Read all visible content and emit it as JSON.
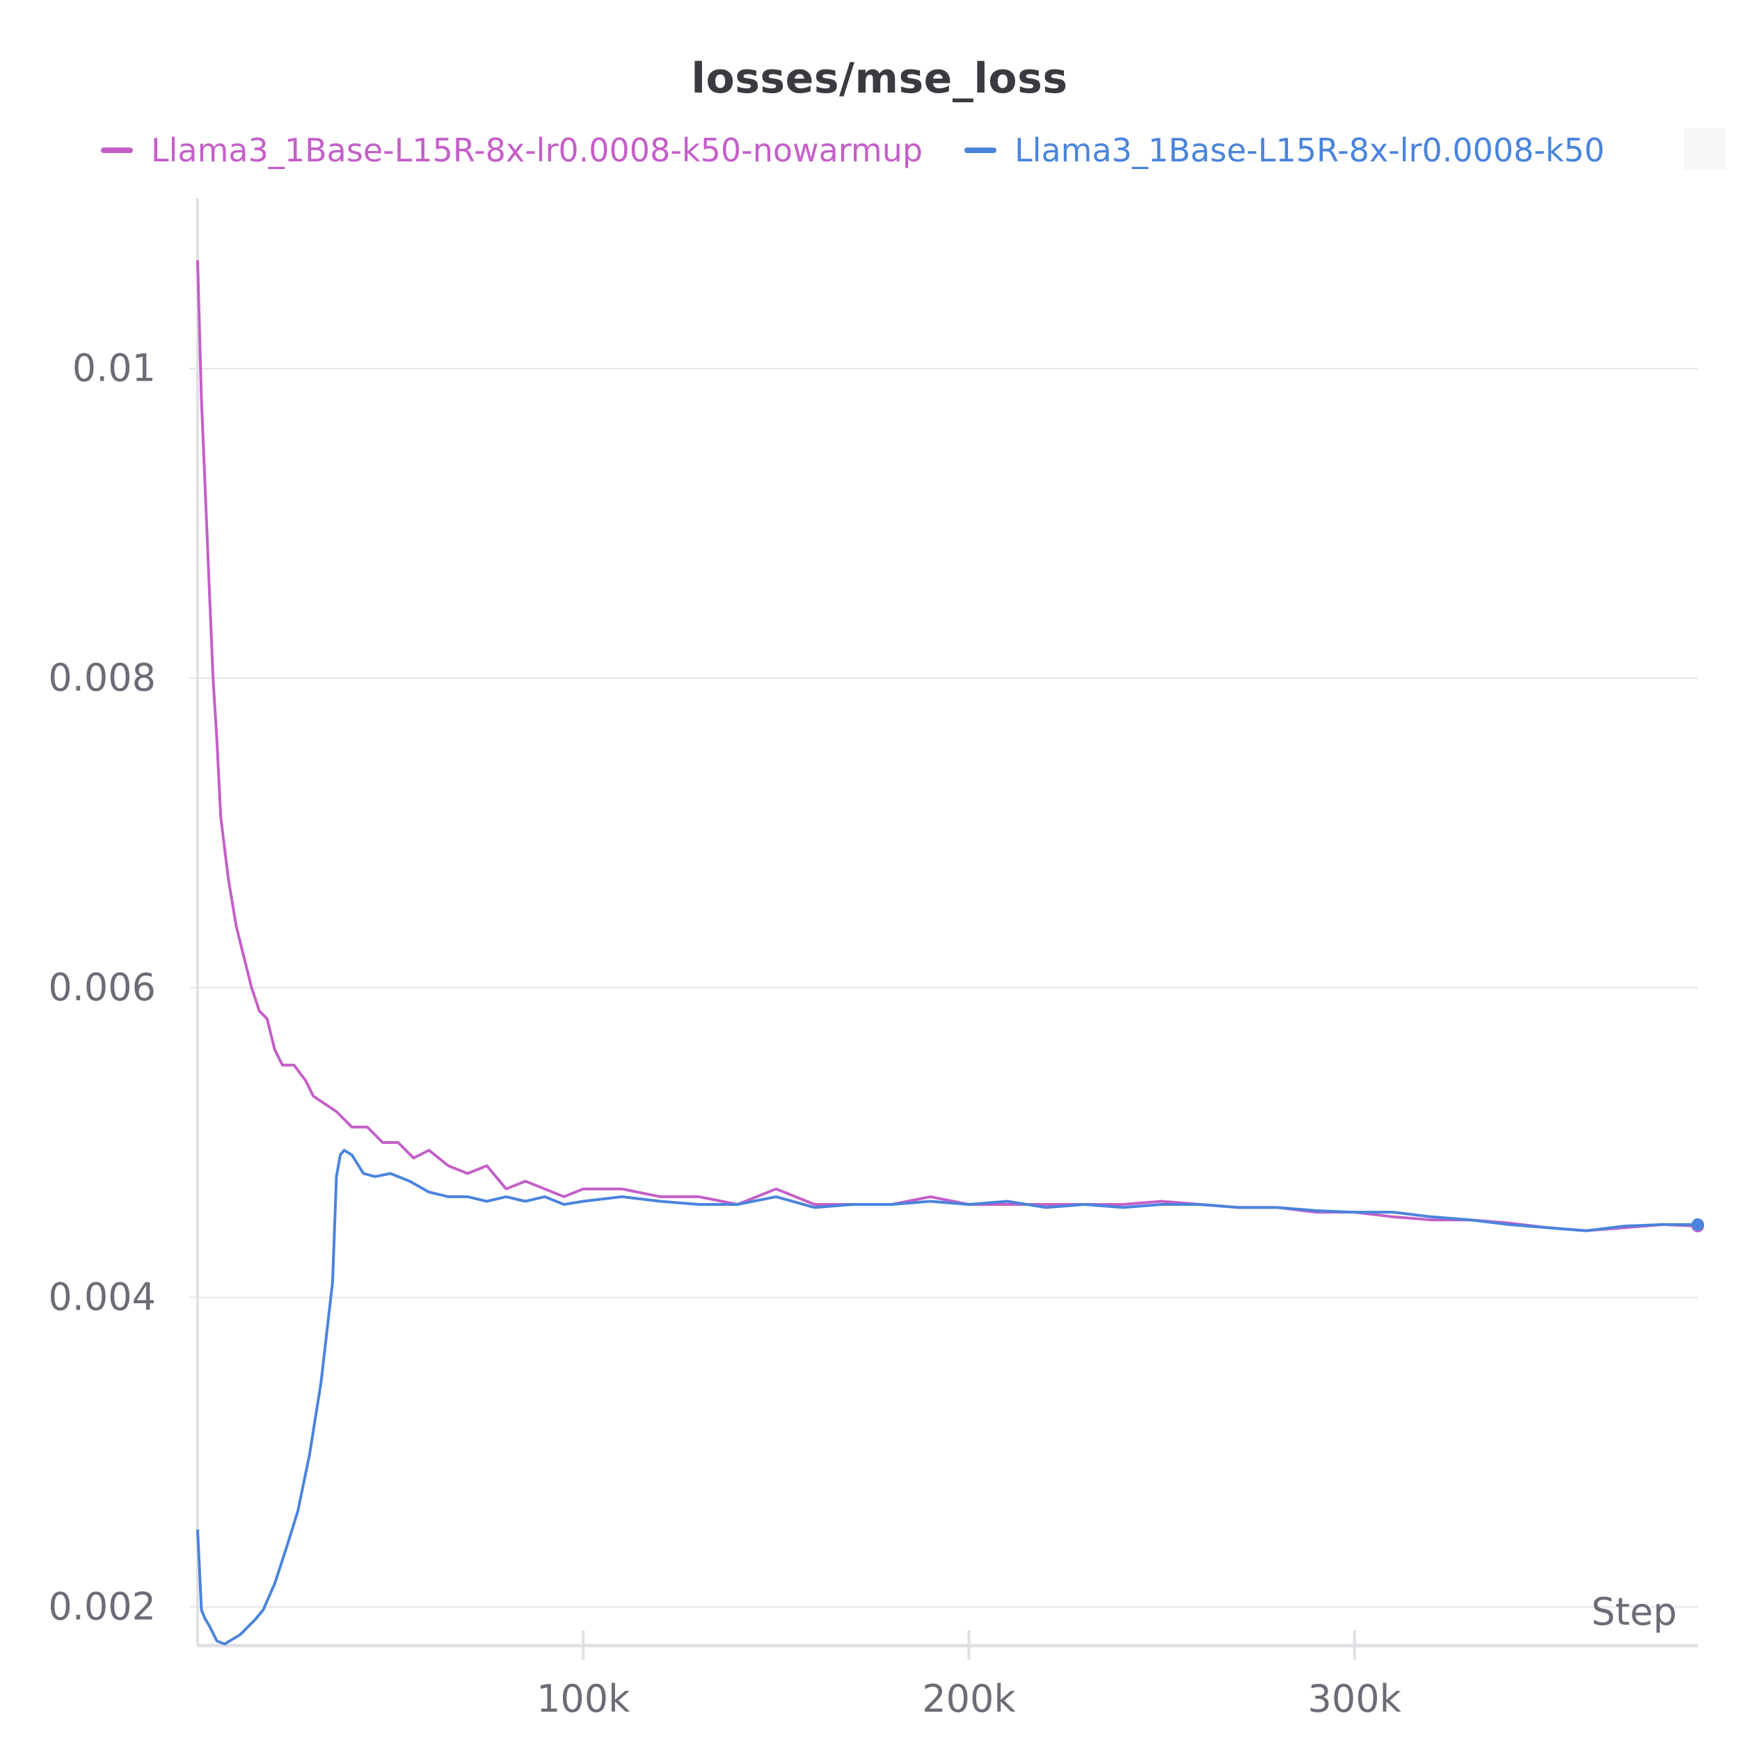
{
  "chart_data": {
    "type": "line",
    "title": "losses/mse_loss",
    "xlabel": "Step",
    "ylabel": "",
    "xlim": [
      0,
      389000
    ],
    "ylim": [
      0.00175,
      0.0111
    ],
    "x_ticks": [
      {
        "value": 100000,
        "label": "100k"
      },
      {
        "value": 200000,
        "label": "200k"
      },
      {
        "value": 300000,
        "label": "300k"
      }
    ],
    "y_ticks": [
      {
        "value": 0.002,
        "label": "0.002"
      },
      {
        "value": 0.004,
        "label": "0.004"
      },
      {
        "value": 0.006,
        "label": "0.006"
      },
      {
        "value": 0.008,
        "label": "0.008"
      },
      {
        "value": 0.01,
        "label": "0.01"
      }
    ],
    "grid": true,
    "legend_position": "top",
    "series": [
      {
        "name": "Llama3_1Base-L15R-8x-lr0.0008-k50-nowarmup",
        "color": "#c45fc8",
        "x": [
          0,
          1000,
          2000,
          3000,
          4000,
          5000,
          6000,
          8000,
          10000,
          12000,
          14000,
          16000,
          18000,
          20000,
          22000,
          25000,
          28000,
          30000,
          33000,
          36000,
          40000,
          44000,
          48000,
          52000,
          56000,
          60000,
          65000,
          70000,
          75000,
          80000,
          85000,
          90000,
          95000,
          100000,
          110000,
          120000,
          130000,
          140000,
          150000,
          160000,
          170000,
          180000,
          190000,
          200000,
          210000,
          220000,
          230000,
          240000,
          250000,
          260000,
          270000,
          280000,
          290000,
          300000,
          310000,
          320000,
          330000,
          340000,
          350000,
          360000,
          370000,
          380000,
          389000
        ],
        "y": [
          0.0107,
          0.0098,
          0.0092,
          0.0086,
          0.008,
          0.0076,
          0.0071,
          0.0067,
          0.0064,
          0.0062,
          0.006,
          0.00585,
          0.0058,
          0.0056,
          0.0055,
          0.0055,
          0.0054,
          0.0053,
          0.00525,
          0.0052,
          0.0051,
          0.0051,
          0.005,
          0.005,
          0.0049,
          0.00495,
          0.00485,
          0.0048,
          0.00485,
          0.0047,
          0.00475,
          0.0047,
          0.00465,
          0.0047,
          0.0047,
          0.00465,
          0.00465,
          0.0046,
          0.0047,
          0.0046,
          0.0046,
          0.0046,
          0.00465,
          0.0046,
          0.0046,
          0.0046,
          0.0046,
          0.0046,
          0.00462,
          0.0046,
          0.00458,
          0.00458,
          0.00455,
          0.00455,
          0.00452,
          0.0045,
          0.0045,
          0.00448,
          0.00445,
          0.00443,
          0.00445,
          0.00447,
          0.00446
        ]
      },
      {
        "name": "Llama3_1Base-L15R-8x-lr0.0008-k50",
        "color": "#4a84dc",
        "x": [
          0,
          1000,
          2000,
          3000,
          5000,
          7000,
          9000,
          11000,
          13000,
          15000,
          17000,
          20000,
          23000,
          26000,
          29000,
          32000,
          35000,
          36000,
          37000,
          38000,
          40000,
          43000,
          46000,
          50000,
          55000,
          60000,
          65000,
          70000,
          75000,
          80000,
          85000,
          90000,
          95000,
          100000,
          110000,
          120000,
          130000,
          140000,
          150000,
          160000,
          170000,
          180000,
          190000,
          200000,
          210000,
          220000,
          230000,
          240000,
          250000,
          260000,
          270000,
          280000,
          290000,
          300000,
          310000,
          320000,
          330000,
          340000,
          350000,
          360000,
          370000,
          380000,
          389000
        ],
        "y": [
          0.0025,
          0.00198,
          0.00192,
          0.00188,
          0.00178,
          0.00176,
          0.00179,
          0.00182,
          0.00187,
          0.00192,
          0.00198,
          0.00215,
          0.00238,
          0.00262,
          0.00298,
          0.00345,
          0.0041,
          0.00478,
          0.00492,
          0.00495,
          0.00492,
          0.0048,
          0.00478,
          0.0048,
          0.00475,
          0.00468,
          0.00465,
          0.00465,
          0.00462,
          0.00465,
          0.00462,
          0.00465,
          0.0046,
          0.00462,
          0.00465,
          0.00462,
          0.0046,
          0.0046,
          0.00465,
          0.00458,
          0.0046,
          0.0046,
          0.00462,
          0.0046,
          0.00462,
          0.00458,
          0.0046,
          0.00458,
          0.0046,
          0.0046,
          0.00458,
          0.00458,
          0.00456,
          0.00455,
          0.00455,
          0.00452,
          0.0045,
          0.00447,
          0.00445,
          0.00443,
          0.00446,
          0.00447,
          0.00447
        ]
      }
    ]
  }
}
